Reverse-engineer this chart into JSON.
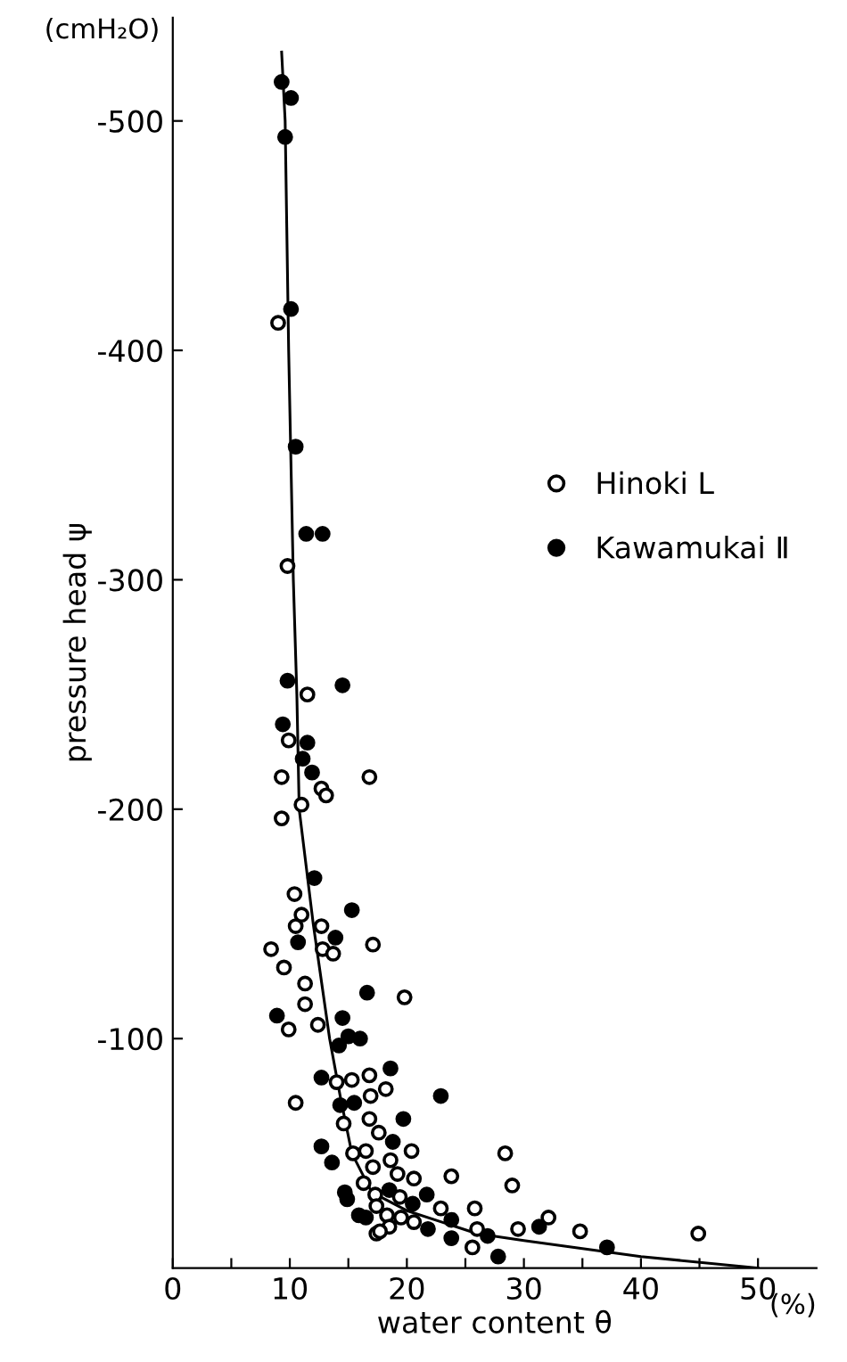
{
  "chart_data": {
    "type": "scatter",
    "xlabel": "water content θ",
    "ylabel": "pressure head ψ",
    "annotations": [
      "(cmH₂O)",
      "(%)"
    ],
    "xlim": [
      0,
      55
    ],
    "ylim": [
      0,
      -545
    ],
    "xticks": [
      0,
      {
        "value": 5,
        "label": null
      },
      10,
      {
        "value": 15,
        "label": null
      },
      20,
      {
        "value": 25,
        "label": null
      },
      30,
      {
        "value": 35,
        "label": null
      },
      40,
      {
        "value": 45,
        "label": null
      },
      50
    ],
    "yticks": [
      -100,
      -200,
      -300,
      -400,
      -500
    ],
    "grid": false,
    "legend": "right",
    "series": [
      {
        "name": "Hinoki L",
        "marker": "circle",
        "color": "#ffffff",
        "x": [
          9.0,
          9.8,
          11.5,
          9.9,
          9.3,
          16.8,
          12.7,
          13.1,
          11.0,
          9.3,
          10.4,
          11.0,
          10.5,
          12.7,
          8.4,
          17.1,
          12.8,
          13.7,
          9.5,
          11.3,
          19.8,
          11.3,
          9.9,
          12.4,
          15.3,
          16.8,
          14.0,
          18.2,
          16.9,
          10.5,
          16.8,
          14.6,
          17.6,
          15.4,
          20.4,
          16.5,
          18.6,
          17.1,
          19.2,
          20.6,
          16.3,
          17.3,
          19.4,
          17.4,
          18.3,
          19.5,
          20.6,
          17.4,
          18.5,
          28.4,
          23.8,
          29.0,
          22.9,
          25.8,
          26.0,
          25.6,
          29.5,
          32.1,
          34.8,
          44.9,
          17.7
        ],
        "values": [
          -412,
          -306,
          -250,
          -230,
          -214,
          -214,
          -209,
          -206,
          -202,
          -196,
          -163,
          -154,
          -149,
          -149,
          -139,
          -141,
          -139,
          -137,
          -131,
          -124,
          -118,
          -115,
          -104,
          -106,
          -82,
          -84,
          -81,
          -78,
          -75,
          -72,
          -65,
          -63,
          -59,
          -50,
          -51,
          -51,
          -47,
          -44,
          -41,
          -39,
          -37,
          -32,
          -31,
          -27,
          -23,
          -22,
          -20,
          -15,
          -18,
          -50,
          -40,
          -36,
          -26,
          -26,
          -17,
          -9,
          -17,
          -22,
          -16,
          -15,
          -16
        ]
      },
      {
        "name": "Kawamukai Ⅱ",
        "marker": "circle",
        "color": "#000000",
        "x": [
          9.3,
          10.1,
          9.6,
          10.1,
          10.5,
          11.4,
          12.8,
          9.8,
          14.5,
          9.4,
          11.5,
          11.1,
          11.9,
          12.1,
          15.3,
          13.9,
          10.7,
          16.6,
          8.9,
          14.5,
          15.0,
          16.0,
          14.2,
          18.6,
          12.7,
          14.3,
          15.5,
          19.7,
          12.7,
          13.6,
          14.7,
          14.9,
          18.5,
          20.5,
          15.9,
          16.5,
          22.9,
          18.8,
          21.7,
          23.8,
          21.8,
          23.8,
          26.9,
          27.8,
          31.3,
          37.1
        ],
        "values": [
          -517,
          -510,
          -493,
          -418,
          -358,
          -320,
          -320,
          -256,
          -254,
          -237,
          -229,
          -222,
          -216,
          -170,
          -156,
          -144,
          -142,
          -120,
          -110,
          -109,
          -101,
          -100,
          -97,
          -87,
          -83,
          -71,
          -72,
          -65,
          -53,
          -46,
          -33,
          -30,
          -34,
          -28,
          -23,
          -22,
          -75,
          -55,
          -32,
          -21,
          -17,
          -13,
          -14,
          -5,
          -18,
          -9
        ]
      },
      {
        "type": "line",
        "color": "#000000",
        "x": [
          9.3,
          9.6,
          9.9,
          10.3,
          10.6,
          10.8,
          12.0,
          13.4,
          14.3,
          15.3,
          17.0,
          20.0,
          26.0,
          30.0,
          40.0,
          50.0
        ],
        "values": [
          -530,
          -500,
          -400,
          -300,
          -250,
          -200,
          -150,
          -100,
          -75,
          -50,
          -33,
          -25,
          -15,
          -12,
          -5,
          0
        ]
      }
    ]
  }
}
